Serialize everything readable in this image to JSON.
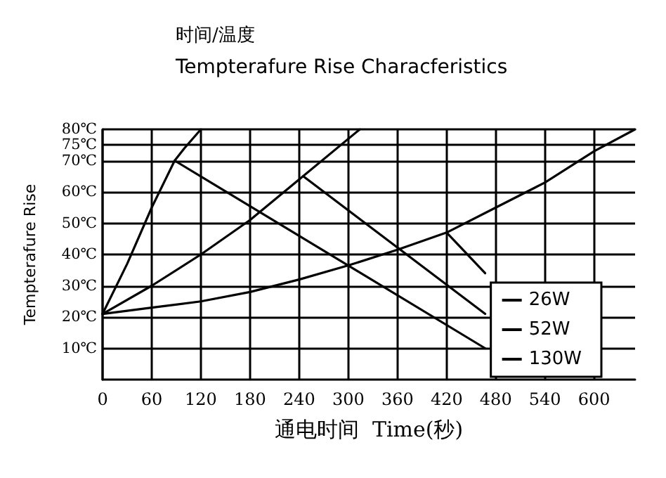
{
  "chart_data": {
    "type": "line",
    "title": "时间/温度",
    "subtitle": "Tempterafure Rise Characferistics",
    "xlabel": "通电时间  Time(秒)",
    "ylabel": "Tempterafure Rise",
    "xlim": [
      0,
      650
    ],
    "xticks": [
      0,
      60,
      120,
      180,
      240,
      300,
      360,
      420,
      480,
      540,
      600
    ],
    "ylim": [
      0,
      80
    ],
    "yticks": [
      {
        "value": 10,
        "label": "10℃"
      },
      {
        "value": 20,
        "label": "20℃"
      },
      {
        "value": 30,
        "label": "30℃"
      },
      {
        "value": 40,
        "label": "40℃"
      },
      {
        "value": 50,
        "label": "50℃"
      },
      {
        "value": 60,
        "label": "60℃"
      },
      {
        "value": 70,
        "label": "70℃"
      },
      {
        "value": 75,
        "label": "75℃"
      },
      {
        "value": 80,
        "label": "80℃"
      }
    ],
    "grid": true,
    "legend": "bottom right",
    "marker": "none",
    "line_style": "solid",
    "series": [
      {
        "name": "26W",
        "color": "#000000",
        "x": [
          0,
          30,
          60,
          88,
          100,
          120
        ],
        "values": [
          21,
          37,
          55,
          70,
          74,
          80
        ]
      },
      {
        "name": "52W",
        "color": "#000000",
        "x": [
          0,
          60,
          120,
          180,
          240,
          314
        ],
        "values": [
          21,
          30,
          40,
          51,
          64,
          80
        ]
      },
      {
        "name": "130W",
        "color": "#000000",
        "x": [
          0,
          60,
          120,
          180,
          240,
          300,
          360,
          420,
          480,
          540,
          600,
          650
        ],
        "values": [
          21,
          23,
          25,
          28,
          32,
          36.5,
          41.5,
          47,
          55,
          63,
          73,
          80
        ]
      },
      {
        "color": "#000000",
        "x": [
          88,
          467
        ],
        "values": [
          70,
          10
        ]
      },
      {
        "color": "#000000",
        "x": [
          245,
          467
        ],
        "values": [
          65,
          21
        ]
      },
      {
        "color": "#000000",
        "x": [
          420,
          467
        ],
        "values": [
          47,
          34
        ]
      }
    ]
  }
}
